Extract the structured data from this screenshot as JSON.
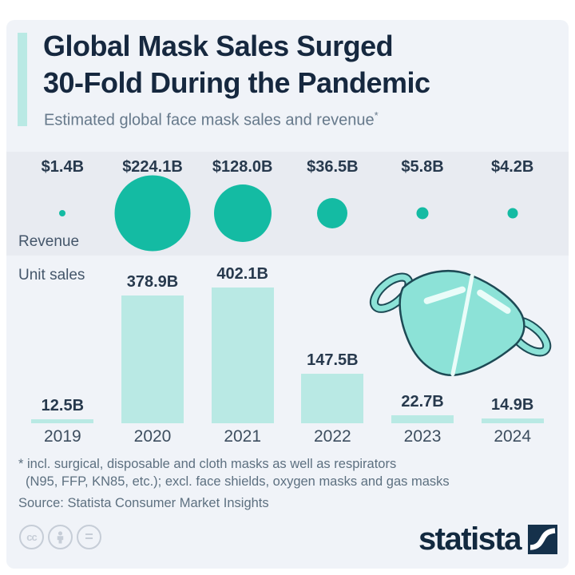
{
  "header": {
    "title_line1": "Global Mask Sales Surged",
    "title_line2": "30-Fold During the Pandemic",
    "subtitle": "Estimated global face mask sales and revenue",
    "subtitle_footnote_marker": "*"
  },
  "labels": {
    "revenue": "Revenue",
    "unit_sales": "Unit sales"
  },
  "chart_data": {
    "type": "bar",
    "title": "Global Mask Sales Surged 30-Fold During the Pandemic",
    "subtitle": "Estimated global face mask sales and revenue*",
    "categories": [
      "2019",
      "2020",
      "2021",
      "2022",
      "2023",
      "2024"
    ],
    "series": [
      {
        "name": "Revenue",
        "display": "bubble",
        "unit": "USD billion",
        "values": [
          1.4,
          224.1,
          128.0,
          36.5,
          5.8,
          4.2
        ],
        "labels": [
          "$1.4B",
          "$224.1B",
          "$128.0B",
          "$36.5B",
          "$5.8B",
          "$4.2B"
        ]
      },
      {
        "name": "Unit sales",
        "display": "bar",
        "unit": "billion units",
        "values": [
          12.5,
          378.9,
          402.1,
          147.5,
          22.7,
          14.9
        ],
        "labels": [
          "12.5B",
          "378.9B",
          "402.1B",
          "147.5B",
          "22.7B",
          "14.9B"
        ]
      }
    ],
    "grid": false,
    "legend_position": "row-labels-left"
  },
  "footnote": {
    "line1": "* incl. surgical, disposable and cloth masks as well as respirators",
    "line2": "(N95, FFP, KN85, etc.); excl. face shields, oxygen masks and gas masks",
    "source": "Source: Statista Consumer Market Insights"
  },
  "branding": {
    "logo_text": "statista"
  },
  "license": {
    "cc_text": "cc",
    "equals_text": "="
  },
  "colors": {
    "bubble_teal": "#14bba3",
    "bar_mint": "#b9e9e4",
    "title_navy": "#16283f",
    "card_bg": "#f0f3f8",
    "band_bg": "#e8ebf1",
    "subtitle_gray": "#66798b",
    "footnote_gray": "#5d7080",
    "logo_navy": "#12293f",
    "license_icon_gray": "#c6cdd7",
    "mask_fill": "#8ce2d7",
    "mask_outline": "#1d4a55"
  }
}
